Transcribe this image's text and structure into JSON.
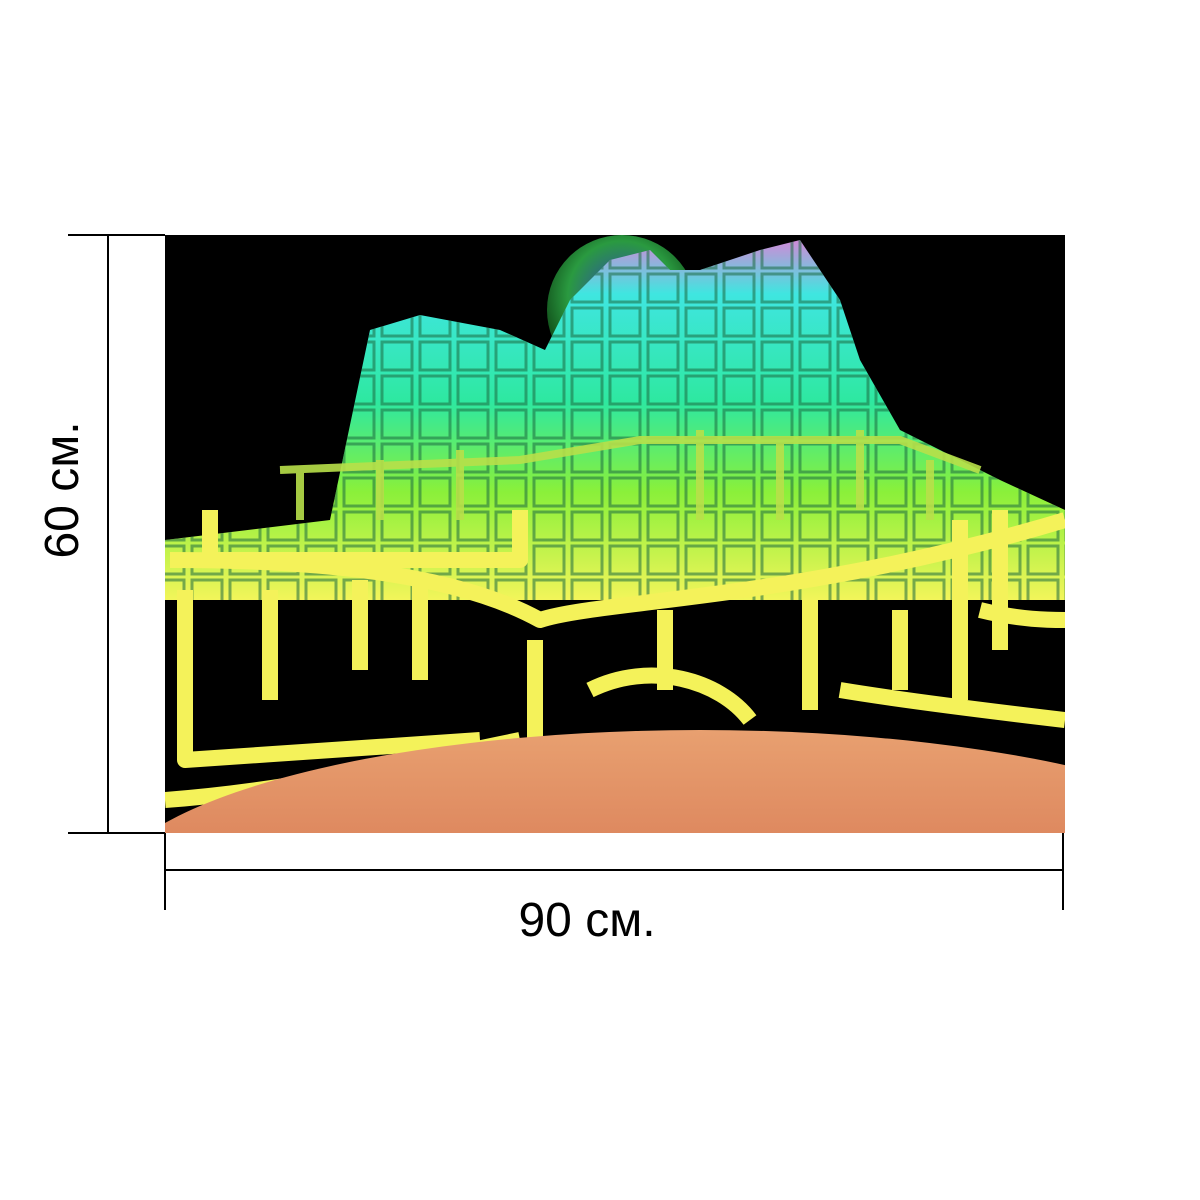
{
  "dimensions": {
    "height": "60 см.",
    "width": "90 см."
  }
}
